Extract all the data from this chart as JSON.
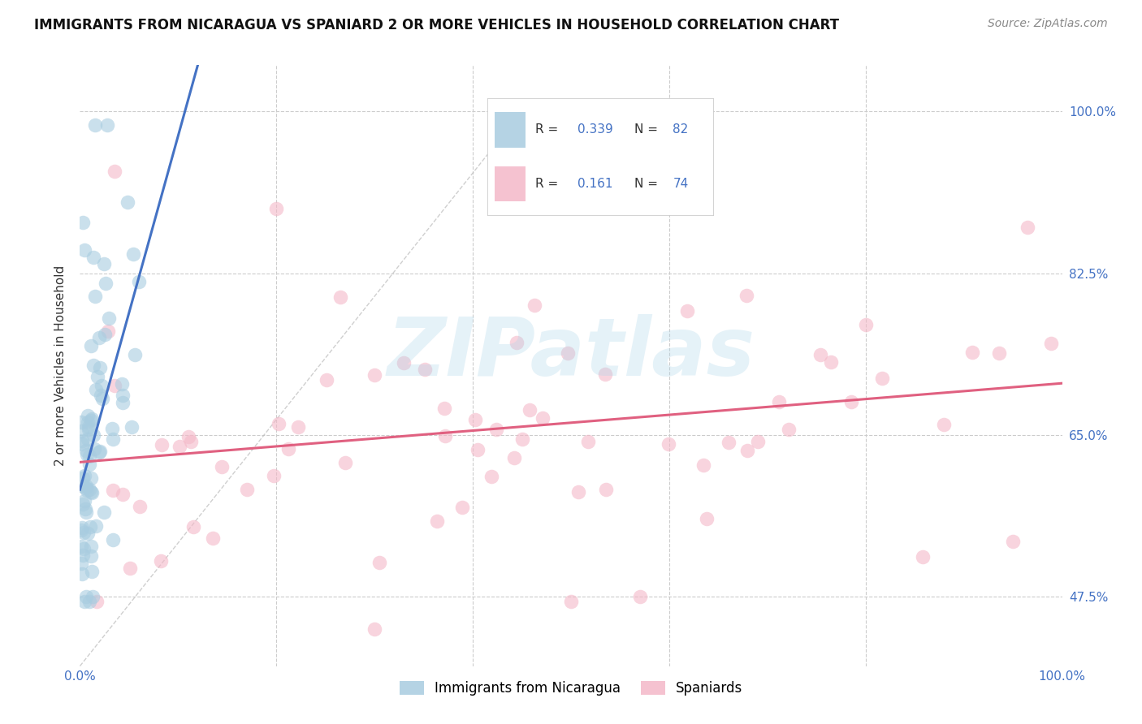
{
  "title": "IMMIGRANTS FROM NICARAGUA VS SPANIARD 2 OR MORE VEHICLES IN HOUSEHOLD CORRELATION CHART",
  "source": "Source: ZipAtlas.com",
  "ylabel": "2 or more Vehicles in Household",
  "ytick_labels": [
    "47.5%",
    "65.0%",
    "82.5%",
    "100.0%"
  ],
  "ytick_positions": [
    0.475,
    0.65,
    0.825,
    1.0
  ],
  "ymin": 0.4,
  "ymax": 1.05,
  "xmin": 0.0,
  "xmax": 1.0,
  "color_nicaragua": "#a8cce0",
  "color_spaniard": "#f4b8c8",
  "color_trend_nicaragua": "#4472c4",
  "color_trend_spaniard": "#e06080",
  "color_diagonal": "#bbbbbb",
  "background_color": "#ffffff",
  "watermark": "ZIPatlas",
  "title_fontsize": 12,
  "source_fontsize": 10,
  "tick_color": "#4472c4"
}
